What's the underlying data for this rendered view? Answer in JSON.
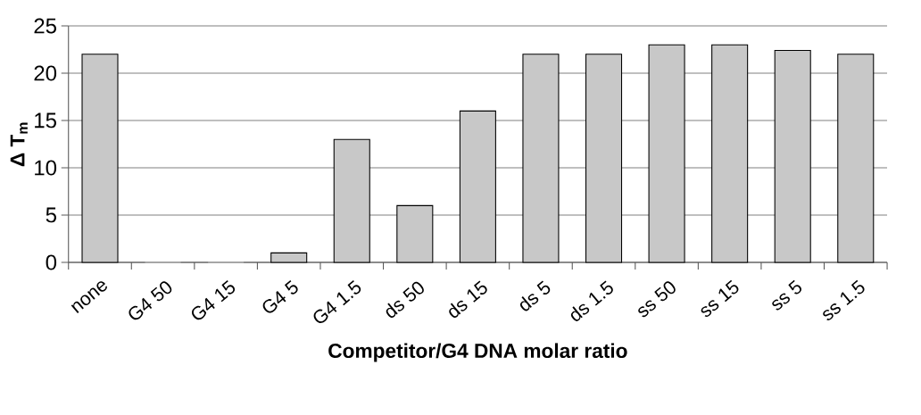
{
  "chart_data": {
    "type": "bar",
    "xlabel": "Competitor/G4 DNA molar ratio",
    "ylabel": "Δ T$_{m}$",
    "categories": [
      "none",
      "G4 50",
      "G4 15",
      "G4 5",
      "G4 1.5",
      "ds 50",
      "ds 15",
      "ds 5",
      "ds 1.5",
      "ss 50",
      "ss 15",
      "ss 5",
      "ss 1.5"
    ],
    "values": [
      22,
      0,
      0,
      1,
      13,
      6,
      16,
      22,
      22,
      23,
      23,
      22.4,
      22
    ],
    "color": "#c8c8c8",
    "ylim": [
      0,
      25
    ],
    "yticks": [
      0,
      5,
      10,
      15,
      20,
      25
    ],
    "grid": "y"
  }
}
